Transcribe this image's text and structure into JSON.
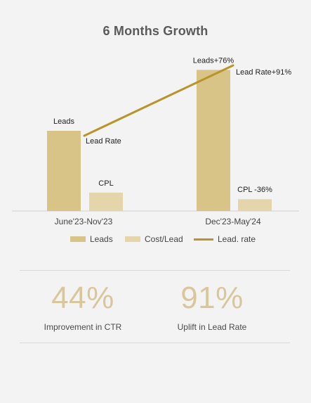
{
  "chart_data": {
    "type": "bar",
    "title": "6 Months Growth",
    "categories": [
      "June'23-Nov'23",
      "Dec'23-May'24"
    ],
    "series": [
      {
        "name": "Leads",
        "values": [
          100,
          176
        ],
        "color": "#d9c487",
        "bar_labels": [
          "Leads",
          "Leads+76%"
        ]
      },
      {
        "name": "Cost/Lead",
        "values": [
          24,
          15.4
        ],
        "color": "#e5d5aa",
        "bar_labels": [
          "CPL",
          "CPL -36%"
        ]
      },
      {
        "name": "Lead. rate",
        "type": "line",
        "values": [
          100,
          191
        ],
        "color": "#b8952a",
        "point_labels": [
          "Lead Rate",
          "Lead Rate+91%"
        ]
      }
    ],
    "legend": {
      "position": "bottom",
      "items": [
        {
          "label": "Leads",
          "type": "bar",
          "color": "#d9c487"
        },
        {
          "label": "Cost/Lead",
          "type": "bar",
          "color": "#e5d5aa"
        },
        {
          "label": "Lead. rate",
          "type": "line",
          "color": "#b8952a"
        }
      ]
    },
    "grid": false
  },
  "stats": [
    {
      "value": "44%",
      "label": "Improvement in CTR"
    },
    {
      "value": "91%",
      "label": "Uplift in Lead Rate"
    }
  ]
}
